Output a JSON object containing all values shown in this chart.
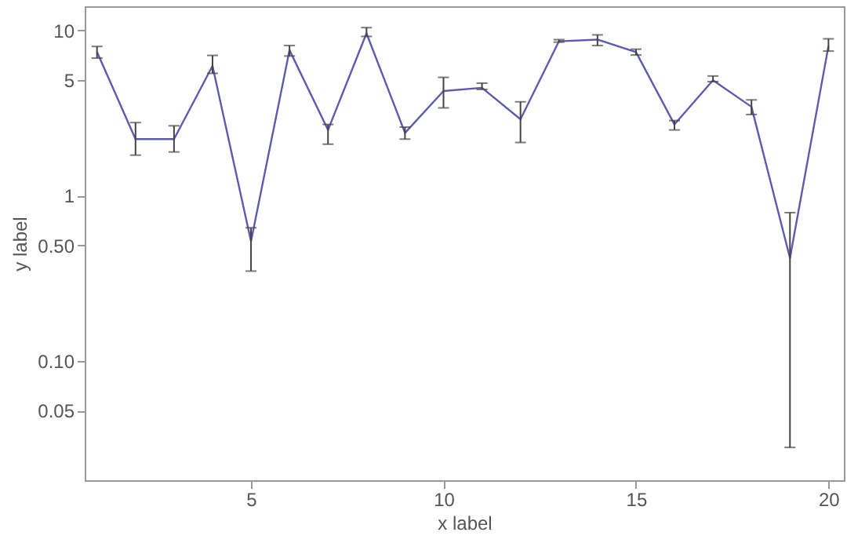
{
  "chart_data": {
    "type": "line",
    "xlabel": "x label",
    "ylabel": "y label",
    "x": [
      1,
      2,
      3,
      4,
      5,
      6,
      7,
      8,
      9,
      10,
      11,
      12,
      13,
      14,
      15,
      16,
      17,
      18,
      19,
      20
    ],
    "series": [
      {
        "color": "#5b5bb0",
        "values": [
          7.4,
          2.2,
          2.2,
          6.1,
          0.53,
          7.6,
          2.5,
          9.6,
          2.4,
          4.3,
          4.5,
          2.9,
          8.6,
          8.8,
          7.4,
          2.7,
          5.0,
          3.45,
          0.42,
          8.05
        ],
        "errors": [
          [
            6.8,
            8.0
          ],
          [
            1.76,
            2.77
          ],
          [
            1.84,
            2.65
          ],
          [
            5.5,
            7.06
          ],
          [
            0.35,
            0.64
          ],
          [
            7.0,
            8.1
          ],
          [
            2.05,
            2.7
          ],
          [
            9.2,
            10.4
          ],
          [
            2.2,
            2.6
          ],
          [
            3.4,
            5.2
          ],
          [
            4.4,
            4.8
          ],
          [
            2.1,
            3.7
          ],
          [
            8.5,
            8.8
          ],
          [
            8.1,
            9.4
          ],
          [
            7.1,
            7.7
          ],
          [
            2.5,
            2.85
          ],
          [
            4.9,
            5.3
          ],
          [
            3.1,
            3.8
          ],
          [
            0.03,
            0.79
          ],
          [
            7.5,
            8.9
          ]
        ]
      }
    ],
    "log": "y",
    "xlim": [
      0.68,
      20.4
    ],
    "ylim": [
      0.019,
      14
    ],
    "xticks": [
      5,
      10,
      15,
      20
    ],
    "yticks": [
      0.05,
      {
        "value": 0.1,
        "label": "0.10"
      },
      {
        "value": 0.5,
        "label": "0.50"
      },
      1,
      5,
      10
    ],
    "grid": false,
    "marker": "none",
    "line_style": "solid"
  }
}
